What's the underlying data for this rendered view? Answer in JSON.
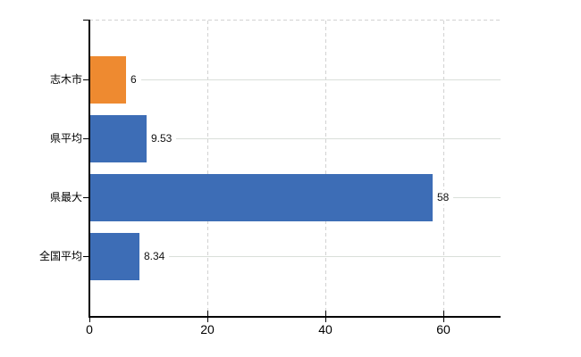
{
  "chart_data": {
    "type": "bar",
    "orientation": "horizontal",
    "title": "",
    "xlabel": "",
    "ylabel": "",
    "categories": [
      "志木市",
      "県平均",
      "県最大",
      "全国平均"
    ],
    "values": [
      6,
      9.53,
      58,
      8.34
    ],
    "value_labels": [
      "6",
      "9.53",
      "58",
      "8.34"
    ],
    "bar_colors": [
      "#ee8a30",
      "#3d6db6",
      "#3d6db6",
      "#3d6db6"
    ],
    "x_ticks": [
      0,
      20,
      40,
      60
    ],
    "x_tick_labels": [
      "0",
      "20",
      "40",
      "60"
    ],
    "xlim": [
      0,
      70
    ],
    "grid": true,
    "legend": false
  },
  "colors": {
    "background": "#ffffff",
    "axis": "#000000",
    "horizontal_gridline": "#d9dfd9",
    "vertical_gridline": "#d2d2d2",
    "bar_orange": "#ee8a30",
    "bar_blue": "#3d6db6",
    "label_text": "#111111"
  }
}
